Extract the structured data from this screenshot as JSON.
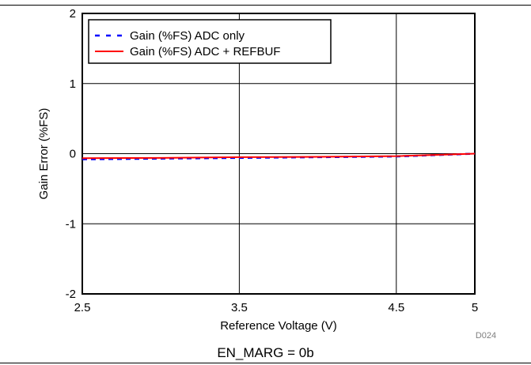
{
  "chart_data": {
    "type": "line",
    "xlabel": "Reference Voltage (V)",
    "ylabel": "Gain Error (%FS)",
    "xlim": [
      2.5,
      5
    ],
    "ylim": [
      -2,
      2
    ],
    "x_ticks": [
      2.5,
      3.5,
      4.5,
      5
    ],
    "x_tick_labels": [
      "2.5",
      "3.5",
      "4.5",
      "5"
    ],
    "y_ticks": [
      -2,
      -1,
      0,
      1,
      2
    ],
    "y_tick_labels": [
      "-2",
      "-1",
      "0",
      "1",
      "2"
    ],
    "grid": true,
    "legend_position": "top-left",
    "series": [
      {
        "name": "Gain (%FS) ADC only",
        "style": "dashed",
        "color": "#0000ff",
        "x": [
          2.5,
          3.0,
          3.5,
          4.0,
          4.5,
          5.0
        ],
        "y": [
          -0.08,
          -0.07,
          -0.06,
          -0.05,
          -0.04,
          0.0
        ]
      },
      {
        "name": "Gain (%FS) ADC + REFBUF",
        "style": "solid",
        "color": "#ff0000",
        "x": [
          2.5,
          3.0,
          3.5,
          4.0,
          4.5,
          5.0
        ],
        "y": [
          -0.065,
          -0.06,
          -0.05,
          -0.045,
          -0.035,
          0.0
        ]
      }
    ]
  },
  "figure_id": "D024",
  "caption": "EN_MARG = 0b"
}
